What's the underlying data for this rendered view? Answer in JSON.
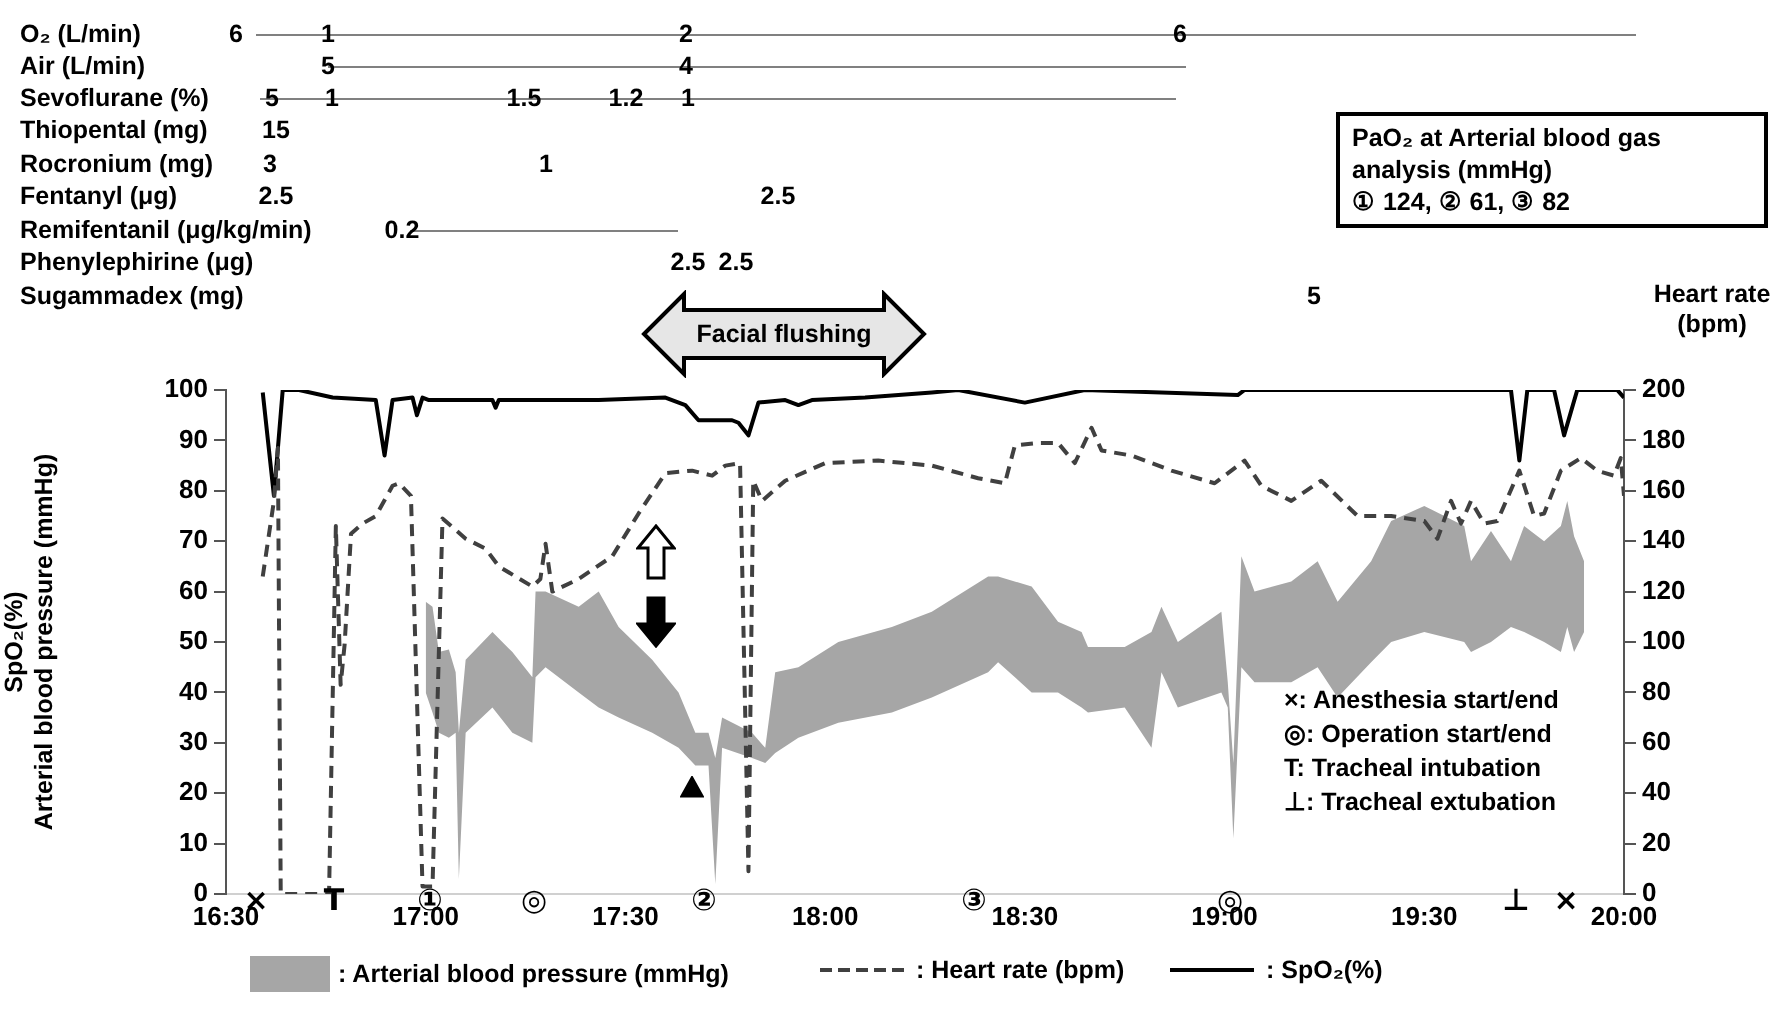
{
  "chart_data": {
    "type": "line",
    "ylabel": "SpO₂(%)\nArterial blood pressure (mmHg)",
    "y2label": "Heart rate (bpm)",
    "xlim": [
      16.5,
      20
    ],
    "xticks": [
      {
        "value": 16.5,
        "label": "16:30"
      },
      {
        "value": 17,
        "label": "17:00"
      },
      {
        "value": 17.5,
        "label": "17:30"
      },
      {
        "value": 18,
        "label": "18:00"
      },
      {
        "value": 18.5,
        "label": "18:30"
      },
      {
        "value": 19,
        "label": "19:00"
      },
      {
        "value": 19.5,
        "label": "19:30"
      },
      {
        "value": 20,
        "label": "20:00"
      }
    ],
    "ylim": [
      0,
      100
    ],
    "yticks": [
      0,
      10,
      20,
      30,
      40,
      50,
      60,
      70,
      80,
      90,
      100
    ],
    "y2lim": [
      0,
      200
    ],
    "y2ticks": [
      0,
      20,
      40,
      60,
      80,
      100,
      120,
      140,
      160,
      180,
      200
    ],
    "legend": "bottom",
    "marker": "none",
    "series": [
      {
        "name": ": Arterial blood pressure (mmHg)",
        "type": "area",
        "color": "#a6a6a6",
        "x": [
          17.0,
          17.017,
          17.033,
          17.058,
          17.075,
          17.083,
          17.1,
          17.167,
          17.217,
          17.267,
          17.275,
          17.3,
          17.383,
          17.433,
          17.483,
          17.567,
          17.633,
          17.675,
          17.708,
          17.725,
          17.742,
          17.817,
          17.85,
          17.875,
          17.933,
          18.033,
          18.167,
          18.267,
          18.408,
          18.433,
          18.517,
          18.583,
          18.642,
          18.658,
          18.75,
          18.817,
          18.842,
          18.883,
          18.992,
          19.008,
          19.022,
          19.042,
          19.075,
          19.167,
          19.233,
          19.283,
          19.367,
          19.417,
          19.5,
          19.6,
          19.617,
          19.667,
          19.717,
          19.75,
          19.8,
          19.842,
          19.858,
          19.875,
          19.9
        ],
        "values": [
          null,
          null,
          null,
          null,
          null,
          null,
          null,
          null,
          null,
          null,
          null,
          null,
          null,
          null,
          null,
          null,
          null,
          null,
          null,
          null,
          null,
          null,
          null,
          null,
          null,
          null,
          null,
          null,
          null,
          null,
          null,
          null,
          null,
          null,
          null,
          null,
          null,
          null,
          null,
          null,
          null,
          null,
          null,
          null,
          null,
          null,
          null,
          null,
          null,
          null,
          null,
          null,
          null,
          null,
          null,
          null,
          null,
          null,
          null
        ],
        "upper": [
          58,
          57,
          48,
          48.5,
          44,
          32,
          46.5,
          52,
          48,
          43,
          60,
          60,
          57,
          60,
          53,
          46.5,
          40,
          32,
          32,
          27,
          35,
          32,
          29,
          44,
          45,
          50,
          53,
          56,
          63,
          63,
          61,
          54,
          52,
          49,
          49,
          52,
          57,
          50,
          56,
          42,
          26,
          67,
          60,
          62,
          66,
          58,
          66,
          74,
          77,
          73,
          66,
          72,
          66,
          73,
          70,
          73,
          78,
          71,
          66
        ],
        "lower": [
          40,
          36,
          32,
          31,
          32,
          3,
          32,
          37,
          32,
          30,
          43,
          45,
          40,
          37,
          35,
          32,
          29,
          25.5,
          25.5,
          2,
          29,
          27,
          26,
          28,
          31,
          34,
          36,
          39,
          44,
          46,
          40,
          40,
          37,
          36,
          37,
          29,
          44,
          37,
          40,
          37,
          11,
          45,
          42,
          42,
          45,
          39,
          46,
          50,
          52,
          50,
          48,
          50,
          53,
          52,
          50,
          48,
          53,
          48,
          52
        ]
      },
      {
        "name": ": Heart rate (bpm)",
        "type": "line",
        "axis": "y2",
        "color": "#404040",
        "line_style": "dashed",
        "x": [
          16.592,
          16.62,
          16.63,
          16.637,
          16.758,
          16.775,
          16.787,
          16.797,
          16.813,
          16.842,
          16.875,
          16.917,
          16.933,
          16.963,
          16.992,
          17.017,
          17.042,
          17.1,
          17.15,
          17.183,
          17.267,
          17.287,
          17.3,
          17.317,
          17.383,
          17.467,
          17.533,
          17.6,
          17.667,
          17.717,
          17.75,
          17.787,
          17.808,
          17.82,
          17.842,
          17.9,
          18.0,
          18.133,
          18.267,
          18.383,
          18.45,
          18.475,
          18.533,
          18.583,
          18.625,
          18.667,
          18.692,
          18.767,
          18.867,
          18.975,
          19.05,
          19.092,
          19.167,
          19.242,
          19.333,
          19.417,
          19.5,
          19.533,
          19.567,
          19.592,
          19.617,
          19.65,
          19.683,
          19.738,
          19.775,
          19.8,
          19.842,
          19.892,
          19.933,
          19.975,
          19.992,
          20.0
        ],
        "values": [
          126,
          156,
          177,
          0,
          0,
          146,
          83,
          99,
          143,
          147,
          150,
          162,
          163,
          158,
          3,
          3,
          149,
          141,
          137,
          130,
          122,
          125,
          139,
          120,
          125,
          134,
          151,
          167,
          168,
          166,
          170,
          171,
          9,
          164,
          156,
          164,
          171,
          172,
          170,
          165,
          163,
          178,
          179,
          179,
          171,
          185,
          176,
          174,
          168,
          163,
          172,
          162,
          156,
          164,
          150,
          150,
          148,
          141,
          156,
          147,
          156,
          147,
          148,
          168,
          150,
          151,
          168,
          173,
          168,
          166,
          173,
          158
        ]
      },
      {
        "name": ": SpO₂(%)",
        "type": "line",
        "color": "#000000",
        "line_style": "solid",
        "x": [
          16.592,
          16.62,
          16.642,
          16.683,
          16.767,
          16.875,
          16.897,
          16.917,
          16.967,
          16.978,
          16.992,
          17.008,
          17.167,
          17.175,
          17.183,
          17.433,
          17.6,
          17.65,
          17.683,
          17.767,
          17.783,
          17.808,
          17.833,
          17.9,
          17.933,
          17.967,
          18.1,
          18.267,
          18.333,
          18.5,
          18.65,
          19.033,
          19.05,
          19.717,
          19.738,
          19.758,
          19.825,
          19.85,
          19.883,
          19.983,
          20.0
        ],
        "values": [
          99.5,
          79,
          100,
          100,
          98.5,
          98,
          87,
          98,
          98.5,
          95,
          98.5,
          98,
          98,
          96.5,
          98,
          98,
          98.5,
          97,
          94,
          94,
          93.5,
          91,
          97.5,
          98,
          97,
          98,
          98.5,
          99.5,
          100,
          97.5,
          100,
          99,
          100,
          100,
          86,
          100,
          100,
          91,
          100,
          100,
          98.5
        ]
      }
    ],
    "annotations": [
      "O₂ (L/min)",
      "6",
      "1",
      "2",
      "6",
      "Air (L/min)",
      "5",
      "4",
      "Sevoflurane (%)",
      "5",
      "1",
      "1.5",
      "1.2",
      "1",
      "Thiopental (mg)",
      "15",
      "Rocronium (mg)",
      "3",
      "1",
      "Fentanyl (μg)",
      "2.5",
      "2.5",
      "Remifentanil (μg/kg/min)",
      "0.2",
      "Phenylephirine (μg)",
      "2.5",
      "2.5",
      "Sugammadex (mg)",
      "5",
      "PaO₂ at Arterial blood gas analysis (mmHg)",
      "① 124, ② 61, ③ 82",
      "Facial flushing",
      "×: Anesthesia start/end",
      "◎: Operation start/end",
      "T: Tracheal intubation",
      "⊥: Tracheal extubation",
      "×",
      "T",
      "①",
      "◎",
      "②",
      "③",
      "◎",
      "⊥",
      "×"
    ]
  }
}
